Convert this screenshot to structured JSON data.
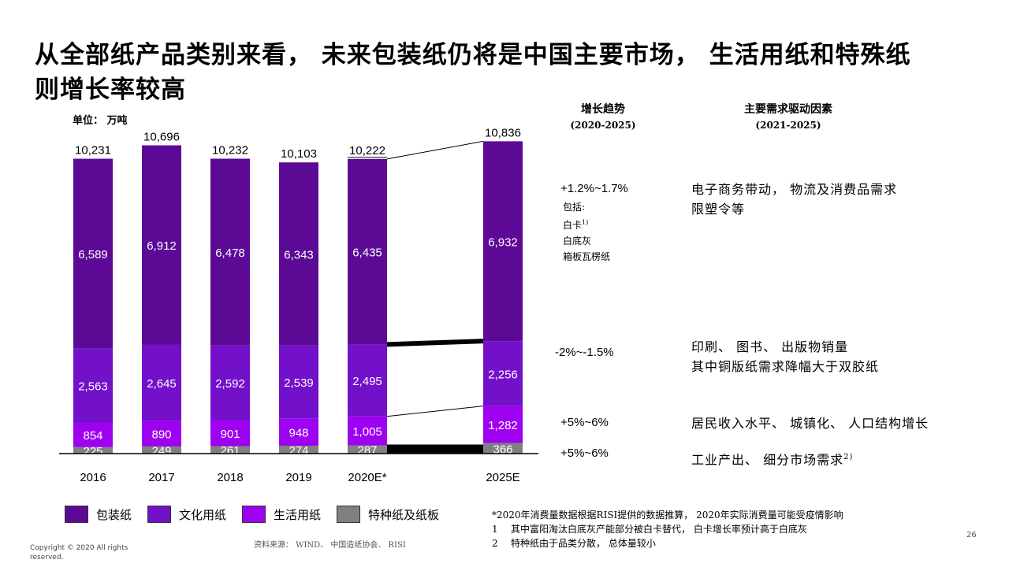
{
  "title": "从全部纸产品类别来看， 未来包装纸仍将是中国主要市场， 生活用纸和特殊纸则增长率较高",
  "unit_label": "单位： 万吨",
  "columns": {
    "trend_title": "增长趋势",
    "trend_period": "(2020-2025)",
    "driver_title": "主要需求驱动因素",
    "driver_period": "(2021-2025)"
  },
  "trends": {
    "packaging": "+1.2%~1.7%",
    "cultural": "-2%~-1.5%",
    "tissue": "+5%~6%",
    "specialty": "+5%~6%"
  },
  "includes": {
    "label": "包括:",
    "items": [
      "白卡",
      "白底灰",
      "箱板瓦楞纸"
    ],
    "footnote_mark": "1)"
  },
  "drivers": {
    "packaging": [
      "电子商务带动， 物流及消费品需求",
      "限塑令等"
    ],
    "cultural": [
      "印刷、 图书、 出版物销量",
      "其中铜版纸需求降幅大于双胶纸"
    ],
    "tissue": [
      "居民收入水平、 城镇化、 人口结构增长"
    ],
    "specialty": [
      "工业产出、 细分市场需求"
    ],
    "specialty_mark": "2)"
  },
  "legend": [
    "包装纸",
    "文化用纸",
    "生活用纸",
    "特种纸及纸板"
  ],
  "notes": {
    "star": "*2020年消费量数据根据RISI提供的数据推算， 2020年实际消费量可能受疫情影响",
    "n1_num": "1",
    "n1": "其中富阳淘汰白底灰产能部分被白卡替代， 白卡增长率预计高于白底灰",
    "n2_num": "2",
    "n2": "特种纸由于品类分散， 总体量较小"
  },
  "source": "资料来源： WIND、 中国造纸协会、 RISI",
  "copyright": "Copyright © 2020 All rights reserved.",
  "page_number": "26",
  "colors": {
    "packaging": "#5C0A96",
    "cultural": "#7310C9",
    "tissue": "#9E00F0",
    "specialty": "#808080"
  },
  "chart_data": {
    "type": "bar",
    "stacked": true,
    "categories": [
      "2016",
      "2017",
      "2018",
      "2019",
      "2020E*",
      "2025E"
    ],
    "series": [
      {
        "name": "特种纸及纸板",
        "values": [
          225,
          249,
          261,
          274,
          287,
          366
        ]
      },
      {
        "name": "生活用纸",
        "values": [
          854,
          890,
          901,
          948,
          1005,
          1282
        ]
      },
      {
        "name": "文化用纸",
        "values": [
          2563,
          2645,
          2592,
          2539,
          2495,
          2256
        ]
      },
      {
        "name": "包装纸",
        "values": [
          6589,
          6912,
          6478,
          6343,
          6435,
          6932
        ]
      }
    ],
    "totals": [
      10231,
      10696,
      10232,
      10103,
      10222,
      10836
    ],
    "total_labels": [
      "10,231",
      "10,696",
      "10,232",
      "10,103",
      "10,222",
      "10,836"
    ],
    "value_labels": {
      "特种纸及纸板": [
        "225",
        "249",
        "261",
        "274",
        "287",
        "366"
      ],
      "生活用纸": [
        "854",
        "890",
        "901",
        "948",
        "1,005",
        "1,282"
      ],
      "文化用纸": [
        "2,563",
        "2,645",
        "2,592",
        "2,539",
        "2,495",
        "2,256"
      ],
      "包装纸": [
        "6,589",
        "6,912",
        "6,478",
        "6,343",
        "6,435",
        "6,932"
      ]
    },
    "ylabel": "万吨"
  }
}
